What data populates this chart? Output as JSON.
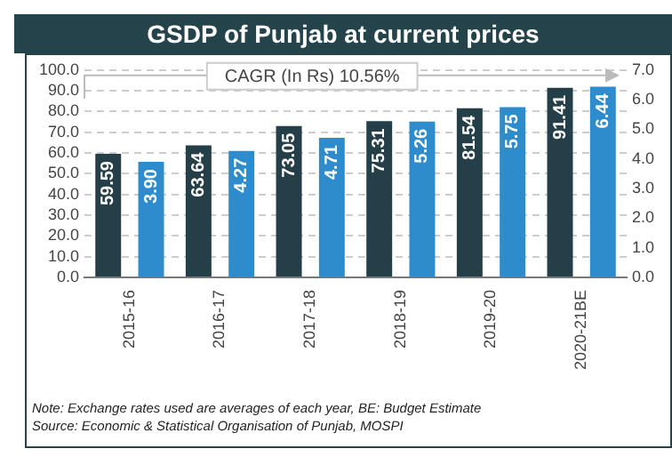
{
  "chart_data": {
    "type": "bar",
    "title": "GSDP  of Punjab at current prices",
    "categories": [
      "2015-16",
      "2016-17",
      "2017-18",
      "2018-19",
      "2019-20",
      "2020-21BE"
    ],
    "series": [
      {
        "color": "#243f47",
        "values": [
          59.59,
          63.64,
          73.05,
          75.31,
          81.54,
          91.41
        ],
        "value_labels": [
          "59.59",
          "63.64",
          "73.05",
          "75.31",
          "81.54",
          "91.41"
        ]
      },
      {
        "color": "#2e8bcc",
        "axis": "y2",
        "values": [
          3.9,
          4.27,
          4.71,
          5.26,
          5.75,
          6.44
        ],
        "value_labels": [
          "3.90",
          "4.27",
          "4.71",
          "5.26",
          "5.75",
          "6.44"
        ]
      }
    ],
    "ylim": [
      0,
      100
    ],
    "yticks": [
      {
        "value": 0,
        "label": "0.0"
      },
      {
        "value": 10,
        "label": "10.0"
      },
      {
        "value": 20,
        "label": "20.0"
      },
      {
        "value": 30,
        "label": "30.0"
      },
      {
        "value": 40,
        "label": "40.0"
      },
      {
        "value": 50,
        "label": "50.0"
      },
      {
        "value": 60,
        "label": "60.0"
      },
      {
        "value": 70,
        "label": "70.0"
      },
      {
        "value": 80,
        "label": "80.0"
      },
      {
        "value": 90,
        "label": "90.0"
      },
      {
        "value": 100,
        "label": "100.0"
      }
    ],
    "y2lim": [
      0,
      7
    ],
    "y2ticks": [
      {
        "value": 0,
        "label": "0.0"
      },
      {
        "value": 1,
        "label": "1.0"
      },
      {
        "value": 2,
        "label": "2.0"
      },
      {
        "value": 3,
        "label": "3.0"
      },
      {
        "value": 4,
        "label": "4.0"
      },
      {
        "value": 5,
        "label": "5.0"
      },
      {
        "value": 6,
        "label": "6.0"
      },
      {
        "value": 7,
        "label": "7.0"
      }
    ],
    "grid": "y",
    "annotations": [
      "CAGR (In Rs) 10.56%",
      "Note: Exchange rates used are averages of each year, BE: Budget Estimate",
      "Source: Economic & Statistical Organisation of Punjab, MOSPI"
    ]
  }
}
